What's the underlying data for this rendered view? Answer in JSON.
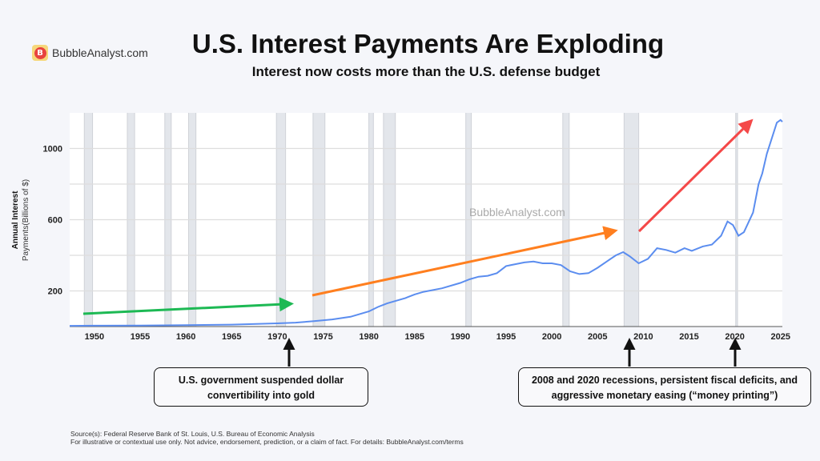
{
  "brand": {
    "name": "BubbleAnalyst.com",
    "logo_letter": "B"
  },
  "header": {
    "title": "U.S. Interest Payments Are Exploding",
    "subtitle": "Interest now costs more than the U.S. defense budget"
  },
  "chart_data": {
    "type": "line",
    "title": "U.S. Interest Payments Are Exploding",
    "subtitle": "Interest now costs more than the U.S. defense budget",
    "ylabel_line1": "Annual Interest",
    "ylabel_line2": "Payments(Billions of $)",
    "xlabel": "",
    "xlim": [
      1947.3,
      2025.2
    ],
    "ylim": [
      0,
      1200
    ],
    "grid": true,
    "y_ticks": [
      200,
      600,
      1000
    ],
    "y_gridlines": [
      200,
      400,
      600,
      800,
      1000
    ],
    "x_ticks": [
      1950,
      1955,
      1960,
      1965,
      1970,
      1975,
      1980,
      1985,
      1990,
      1995,
      2000,
      2005,
      2010,
      2015,
      2020,
      2025
    ],
    "line_color": "#5b8def",
    "recessions": [
      [
        1948.9,
        1949.8
      ],
      [
        1953.6,
        1954.4
      ],
      [
        1957.7,
        1958.4
      ],
      [
        1960.3,
        1961.1
      ],
      [
        1969.9,
        1970.9
      ],
      [
        1973.9,
        1975.2
      ],
      [
        1980.0,
        1980.5
      ],
      [
        1981.6,
        1982.9
      ],
      [
        1990.6,
        1991.2
      ],
      [
        2001.2,
        2001.9
      ],
      [
        2007.9,
        2009.5
      ],
      [
        2020.1,
        2020.3
      ]
    ],
    "series": [
      {
        "x": [
          1947.3,
          1950,
          1955,
          1960,
          1965,
          1970,
          1972,
          1974,
          1976,
          1978,
          1980,
          1981,
          1982,
          1984,
          1985,
          1986,
          1988,
          1990,
          1991,
          1992,
          1993,
          1994,
          1995,
          1996,
          1997,
          1998,
          1999,
          2000,
          2001,
          2002,
          2003,
          2004,
          2005,
          2006,
          2007,
          2007.8,
          2008.5,
          2009.5,
          2010.5,
          2011.5,
          2012.5,
          2013.5,
          2014.5,
          2015.3,
          2016.5,
          2017.5,
          2018.5,
          2019.2,
          2019.8,
          2020.4,
          2021,
          2022,
          2022.6,
          2023,
          2023.5,
          2024,
          2024.6,
          2025,
          2025.2
        ],
        "y": [
          4,
          5,
          6,
          8,
          11,
          18,
          22,
          30,
          40,
          55,
          85,
          110,
          130,
          160,
          180,
          195,
          215,
          245,
          265,
          280,
          285,
          300,
          340,
          350,
          360,
          365,
          355,
          355,
          345,
          310,
          295,
          300,
          330,
          365,
          400,
          418,
          395,
          355,
          380,
          440,
          430,
          415,
          440,
          425,
          450,
          460,
          510,
          590,
          570,
          510,
          530,
          640,
          800,
          860,
          970,
          1050,
          1145,
          1160,
          1150
        ]
      }
    ],
    "watermark": "BubbleAnalyst.com"
  },
  "annotations": {
    "gold_callout": "U.S. government suspended dollar convertibility into gold",
    "recent_callout": "2008 and 2020 recessions, persistent fiscal deficits, and aggressive monetary easing (“money printing”)",
    "arrow_colors": {
      "green": "#1db954",
      "orange": "#ff7f1f",
      "red": "#f44848"
    }
  },
  "footer": {
    "source": "Source(s): Federal Reserve Bank of St. Louis, U.S. Bureau of Economic Analysis",
    "disclaimer": "For illustrative or contextual use only. Not advice, endorsement, prediction, or a claim of fact. For details: BubbleAnalyst.com/terms"
  }
}
